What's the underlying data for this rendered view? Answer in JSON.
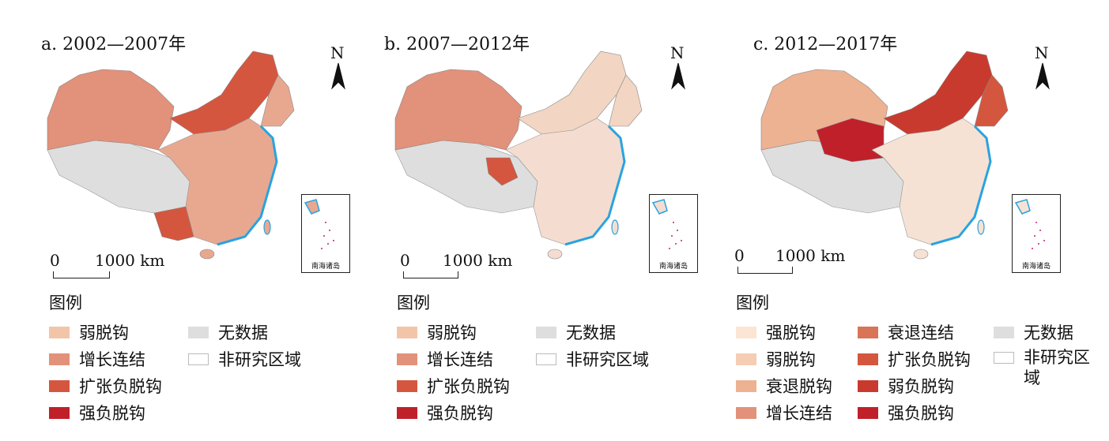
{
  "panels": [
    {
      "title": "a. 2002—2007年",
      "north": "N",
      "scale_zero": "0",
      "scale_label": "1000 km",
      "inset_label": "南海诸岛",
      "legend_title": "图例",
      "legend": [
        {
          "label": "弱脱钩",
          "color": "#f2c5a8"
        },
        {
          "label": "增长连结",
          "color": "#e2917a"
        },
        {
          "label": "扩张负脱钩",
          "color": "#d5563e"
        },
        {
          "label": "强负脱钩",
          "color": "#c0202a"
        },
        {
          "label": "无数据",
          "color": "#dedede"
        },
        {
          "label": "非研究区域",
          "color": "#ffffff"
        }
      ],
      "map_colors": {
        "base": "#e8a890",
        "accent": "#d5563e",
        "nodata": "#dedede"
      }
    },
    {
      "title": "b. 2007—2012年",
      "north": "N",
      "scale_zero": "0",
      "scale_label": "1000 km",
      "inset_label": "南海诸岛",
      "legend_title": "图例",
      "legend": [
        {
          "label": "弱脱钩",
          "color": "#f2c5a8"
        },
        {
          "label": "增长连结",
          "color": "#e2917a"
        },
        {
          "label": "扩张负脱钩",
          "color": "#d5563e"
        },
        {
          "label": "强负脱钩",
          "color": "#c0202a"
        },
        {
          "label": "无数据",
          "color": "#dedede"
        },
        {
          "label": "非研究区域",
          "color": "#ffffff"
        }
      ],
      "map_colors": {
        "base": "#f2d5c2",
        "accent": "#d5563e",
        "nodata": "#dedede"
      }
    },
    {
      "title": "c. 2012—2017年",
      "north": "N",
      "scale_zero": "0",
      "scale_label": "1000 km",
      "inset_label": "南海诸岛",
      "legend_title": "图例",
      "legend": [
        {
          "label": "强脱钩",
          "color": "#fde5d3"
        },
        {
          "label": "弱脱钩",
          "color": "#f5cdb3"
        },
        {
          "label": "衰退脱钩",
          "color": "#edb292"
        },
        {
          "label": "增长连结",
          "color": "#e2917a"
        },
        {
          "label": "衰退连结",
          "color": "#d97457"
        },
        {
          "label": "扩张负脱钩",
          "color": "#d5563e"
        },
        {
          "label": "弱负脱钩",
          "color": "#c93a2e"
        },
        {
          "label": "强负脱钩",
          "color": "#c0202a"
        },
        {
          "label": "无数据",
          "color": "#dedede"
        },
        {
          "label": "非研究区域",
          "color": "#ffffff"
        }
      ],
      "map_colors": {
        "base": "#f6e2d4",
        "accent": "#c0202a",
        "nodata": "#dedede"
      }
    }
  ]
}
